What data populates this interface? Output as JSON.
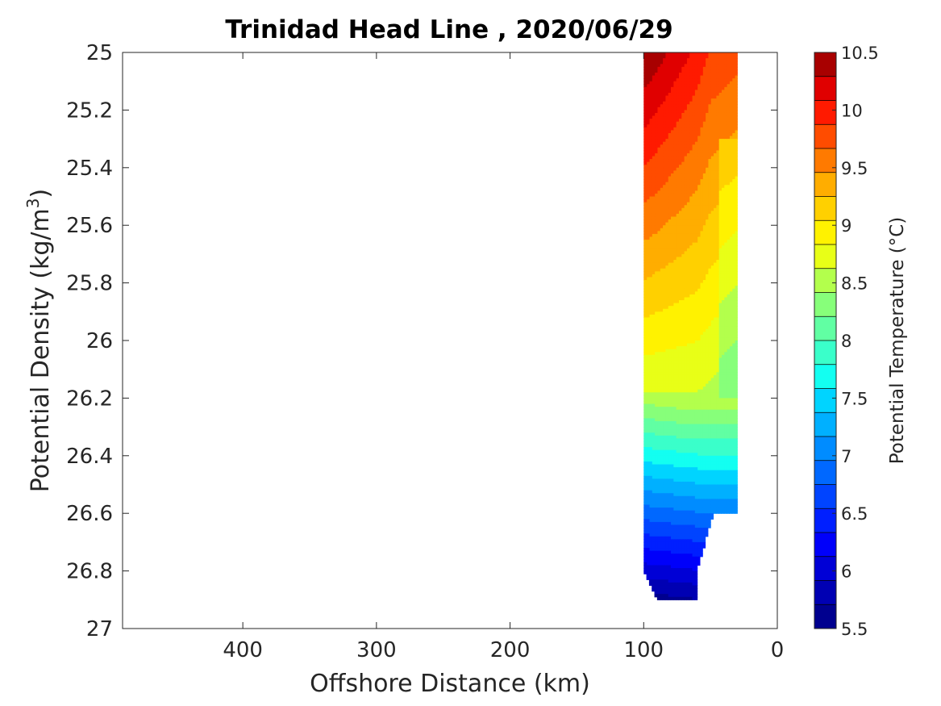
{
  "chart_data": {
    "type": "heatmap",
    "title": "Trinidad Head Line , 2020/06/29",
    "xlabel": "Offshore Distance (km)",
    "ylabel_main": "Potential Density (kg/m",
    "ylabel_sup": "3",
    "ylabel_end": ")",
    "xlim": [
      490,
      0
    ],
    "x_reversed": true,
    "ylim": [
      25,
      27
    ],
    "y_reversed": true,
    "x_ticks": [
      400,
      300,
      200,
      100,
      0
    ],
    "x_tick_labels": [
      "400",
      "300",
      "200",
      "100",
      "0"
    ],
    "y_ticks": [
      25,
      25.2,
      25.4,
      25.6,
      25.8,
      26,
      26.2,
      26.4,
      26.6,
      26.8,
      27
    ],
    "y_tick_labels": [
      "25",
      "25.2",
      "25.4",
      "25.6",
      "25.8",
      "26",
      "26.2",
      "26.4",
      "26.6",
      "26.8",
      "27"
    ],
    "grid": false,
    "colorbar": {
      "label": "Potential Temperature (°C)",
      "range": [
        5.5,
        10.5
      ],
      "levels": [
        5.5,
        5.75,
        6,
        6.25,
        6.5,
        6.75,
        7,
        7.25,
        7.5,
        7.75,
        8,
        8.25,
        8.5,
        8.75,
        9,
        9.25,
        9.5,
        9.75,
        10,
        10.25,
        10.5
      ],
      "colors": [
        "#00008f",
        "#0000b3",
        "#0000d6",
        "#0000fa",
        "#001fff",
        "#0044ff",
        "#0068ff",
        "#008cff",
        "#00b0ff",
        "#00d4ff",
        "#13fff1",
        "#3affca",
        "#61ffa3",
        "#87ff7a",
        "#b3ff4c",
        "#e8ff17",
        "#fff200",
        "#ffd000",
        "#ffad00",
        "#ff7a00",
        "#ff4c00",
        "#ff1a00",
        "#e00000",
        "#a80000"
      ],
      "tick_values": [
        5.5,
        6,
        6.5,
        7,
        7.5,
        8,
        8.5,
        9,
        9.5,
        10,
        10.5
      ],
      "tick_labels": [
        "5.5",
        "6",
        "6.5",
        "7",
        "7.5",
        "8",
        "8.5",
        "9",
        "9.5",
        "10",
        "10.5"
      ]
    },
    "section": {
      "x_range_km": [
        30,
        100
      ],
      "sigma_range": [
        25,
        26.9
      ],
      "description_colors": {
        "surface_offshore": "#ff3b00",
        "upper": "#ffad00",
        "middle": "#e8ff17",
        "lower": "#00d4ff",
        "bottom": "#0000b3"
      }
    }
  }
}
